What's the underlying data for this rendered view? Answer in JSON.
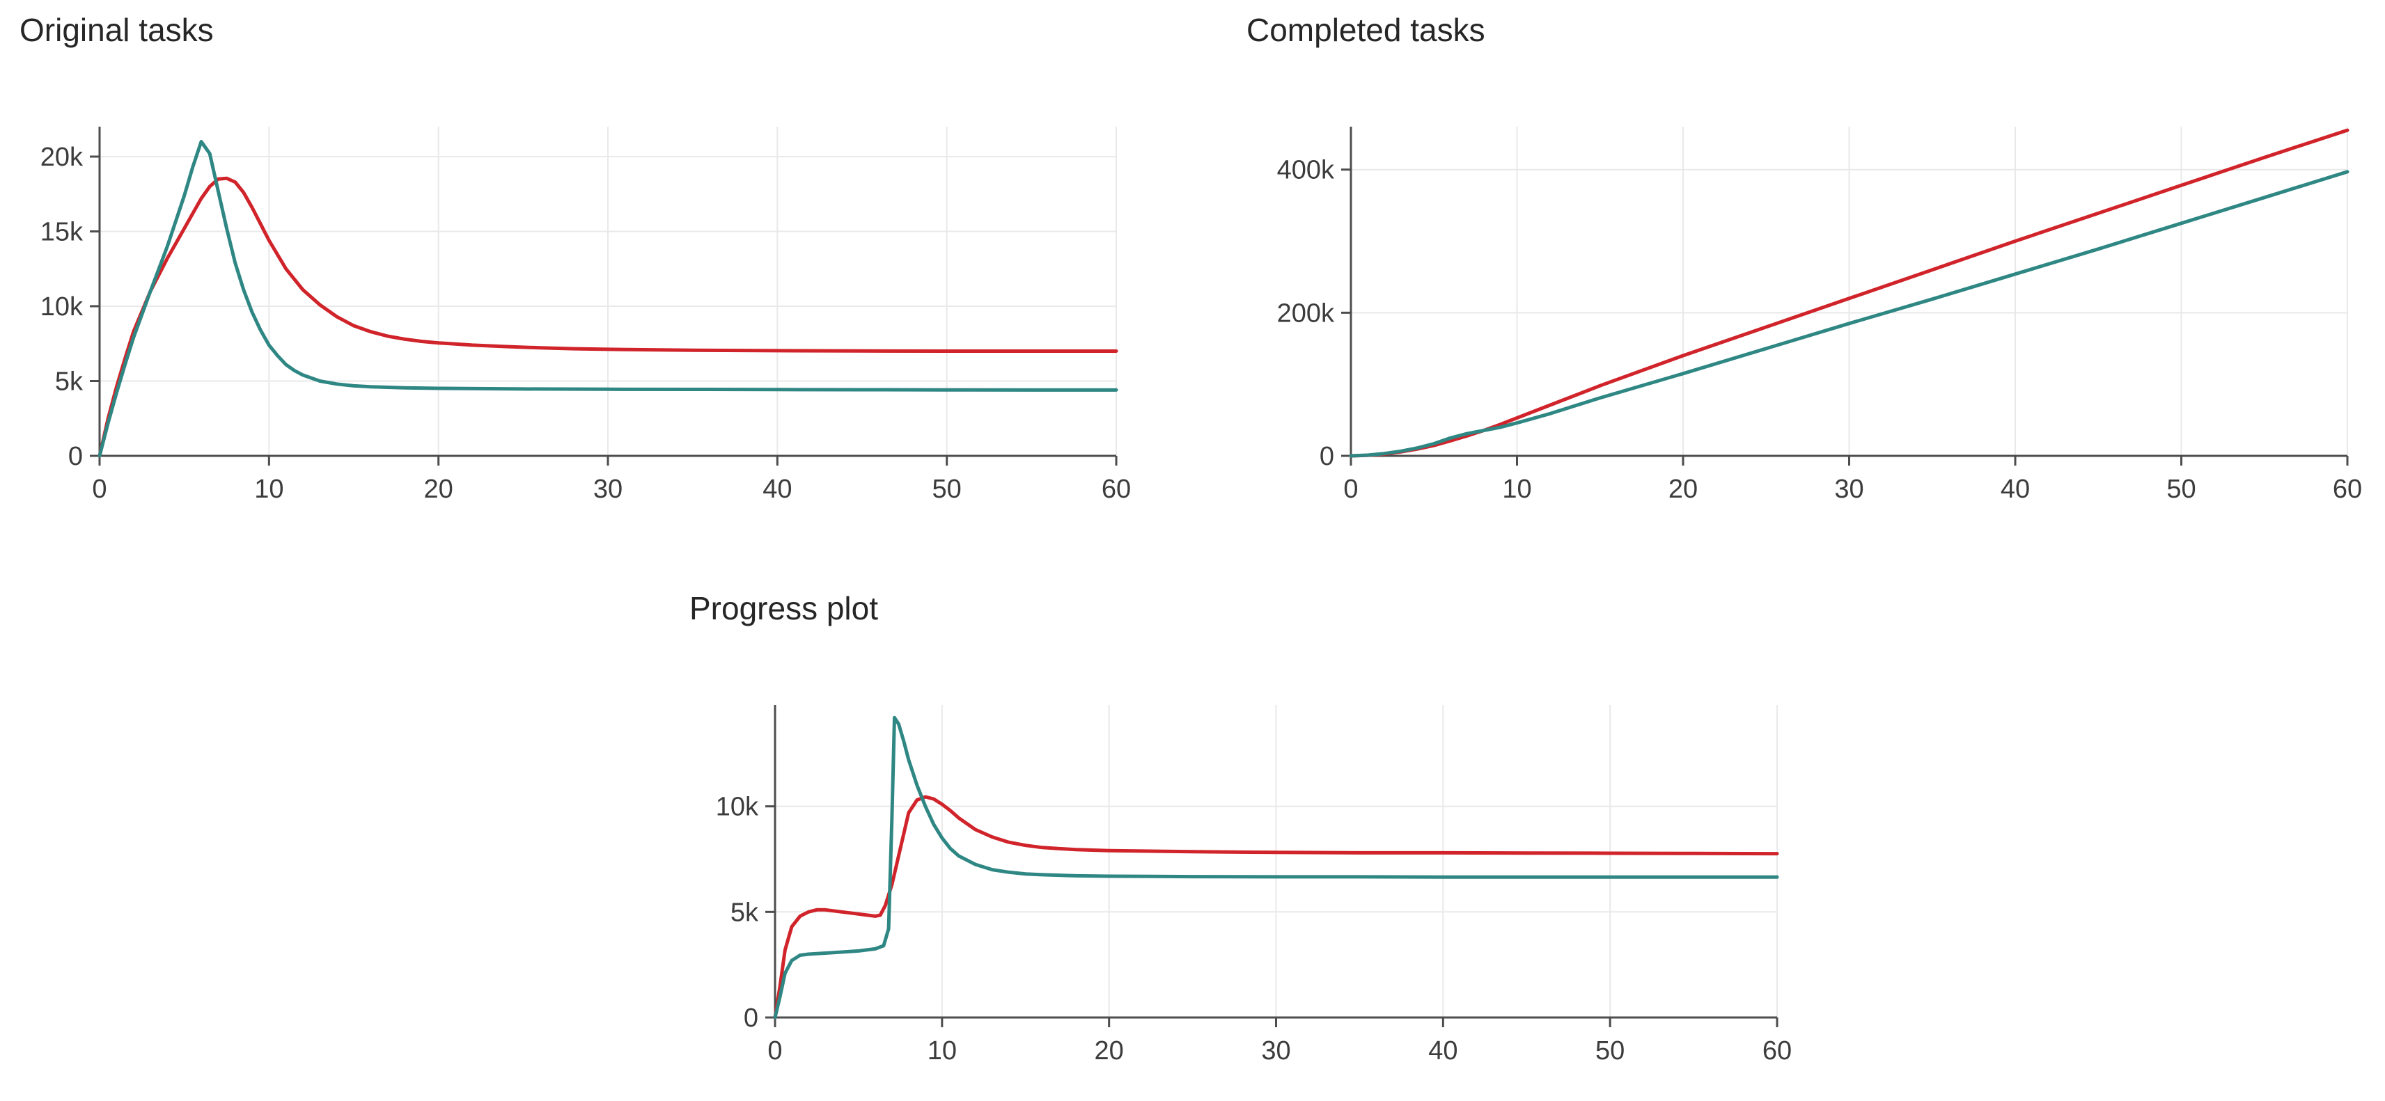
{
  "page": {
    "background": "#ffffff"
  },
  "palette": {
    "red": "#d0232a",
    "teal": "#2f8784",
    "grid": "#e9e9e9",
    "axis": "#4d4d4d",
    "tick_text": "#3c3c3c",
    "title_text": "#262626"
  },
  "chart_data": [
    {
      "type": "line",
      "title": "Original tasks",
      "xlabel": "",
      "ylabel": "",
      "xlim": [
        0,
        60
      ],
      "ylim": [
        0,
        22000
      ],
      "xticks": [
        0,
        10,
        20,
        30,
        40,
        50,
        60
      ],
      "xtick_labels": [
        "0",
        "10",
        "20",
        "30",
        "40",
        "50",
        "60"
      ],
      "yticks": [
        0,
        5000,
        10000,
        15000,
        20000
      ],
      "ytick_labels": [
        "0",
        "5k",
        "10k",
        "15k",
        "20k"
      ],
      "grid": true,
      "legend": "none",
      "series": [
        {
          "name": "red-series",
          "color": "red",
          "x": [
            0,
            0.5,
            1,
            1.5,
            2,
            3,
            4,
            5,
            5.5,
            6,
            6.5,
            7,
            7.5,
            8,
            8.5,
            9,
            9.5,
            10,
            11,
            12,
            13,
            14,
            15,
            16,
            17,
            18,
            19,
            20,
            22,
            24,
            26,
            28,
            30,
            35,
            40,
            45,
            50,
            55,
            60
          ],
          "y": [
            0,
            2500,
            4600,
            6500,
            8300,
            11000,
            13200,
            15200,
            16200,
            17200,
            18000,
            18500,
            18550,
            18300,
            17600,
            16600,
            15500,
            14400,
            12500,
            11100,
            10100,
            9300,
            8700,
            8300,
            8000,
            7800,
            7650,
            7550,
            7400,
            7300,
            7220,
            7160,
            7120,
            7060,
            7030,
            7010,
            7000,
            7000,
            7000
          ]
        },
        {
          "name": "teal-series",
          "color": "teal",
          "x": [
            0,
            0.5,
            1,
            1.5,
            2,
            3,
            4,
            5,
            5.5,
            6,
            6.5,
            7,
            7.5,
            8,
            8.5,
            9,
            9.5,
            10,
            10.5,
            11,
            11.5,
            12,
            13,
            14,
            15,
            16,
            18,
            20,
            25,
            30,
            35,
            40,
            45,
            50,
            55,
            60
          ],
          "y": [
            0,
            2200,
            4200,
            6100,
            7900,
            11000,
            14000,
            17400,
            19300,
            21000,
            20200,
            17700,
            15200,
            12900,
            11100,
            9600,
            8400,
            7400,
            6700,
            6100,
            5700,
            5400,
            5000,
            4800,
            4680,
            4620,
            4550,
            4510,
            4470,
            4450,
            4440,
            4430,
            4420,
            4410,
            4400,
            4400
          ]
        }
      ]
    },
    {
      "type": "line",
      "title": "Completed tasks",
      "xlabel": "",
      "ylabel": "",
      "xlim": [
        0,
        60
      ],
      "ylim": [
        0,
        460000
      ],
      "xticks": [
        0,
        10,
        20,
        30,
        40,
        50,
        60
      ],
      "xtick_labels": [
        "0",
        "10",
        "20",
        "30",
        "40",
        "50",
        "60"
      ],
      "yticks": [
        0,
        200000,
        400000
      ],
      "ytick_labels": [
        "0",
        "200k",
        "400k"
      ],
      "grid": true,
      "legend": "none",
      "series": [
        {
          "name": "red-series",
          "color": "red",
          "x": [
            0,
            1,
            2,
            3,
            4,
            5,
            6,
            7,
            8,
            9,
            10,
            12,
            15,
            20,
            25,
            30,
            35,
            40,
            45,
            50,
            55,
            60
          ],
          "y": [
            0,
            800,
            2500,
            5500,
            9500,
            14500,
            21000,
            28000,
            35500,
            44000,
            53000,
            71000,
            98000,
            140000,
            180000,
            220000,
            260000,
            300000,
            339000,
            378000,
            417000,
            455000
          ]
        },
        {
          "name": "teal-series",
          "color": "teal",
          "x": [
            0,
            1,
            2,
            3,
            4,
            5,
            6,
            7,
            8,
            9,
            10,
            12,
            15,
            20,
            25,
            30,
            35,
            40,
            45,
            50,
            55,
            60
          ],
          "y": [
            0,
            1000,
            3200,
            6500,
            11000,
            17000,
            25000,
            31000,
            35500,
            40000,
            46000,
            59000,
            81000,
            115000,
            150000,
            185000,
            219000,
            254000,
            289000,
            325000,
            361000,
            397000
          ]
        }
      ]
    },
    {
      "type": "line",
      "title": "Progress plot",
      "xlabel": "",
      "ylabel": "",
      "xlim": [
        0,
        60
      ],
      "ylim": [
        0,
        14800
      ],
      "xticks": [
        0,
        10,
        20,
        30,
        40,
        50,
        60
      ],
      "xtick_labels": [
        "0",
        "10",
        "20",
        "30",
        "40",
        "50",
        "60"
      ],
      "yticks": [
        0,
        5000,
        10000
      ],
      "ytick_labels": [
        "0",
        "5k",
        "10k"
      ],
      "grid": true,
      "legend": "none",
      "series": [
        {
          "name": "red-series",
          "color": "red",
          "x": [
            0,
            0.3,
            0.6,
            1,
            1.5,
            2,
            2.5,
            3,
            3.5,
            4,
            4.5,
            5,
            5.5,
            6,
            6.3,
            6.6,
            7,
            7.5,
            8,
            8.5,
            9,
            9.5,
            10,
            10.5,
            11,
            12,
            13,
            14,
            15,
            16,
            18,
            20,
            25,
            30,
            35,
            40,
            45,
            50,
            55,
            60
          ],
          "y": [
            0,
            1500,
            3200,
            4300,
            4800,
            5000,
            5100,
            5100,
            5050,
            5000,
            4950,
            4900,
            4850,
            4800,
            4850,
            5300,
            6300,
            8000,
            9700,
            10300,
            10450,
            10350,
            10100,
            9800,
            9450,
            8900,
            8550,
            8300,
            8150,
            8050,
            7950,
            7900,
            7850,
            7820,
            7800,
            7800,
            7790,
            7780,
            7770,
            7760
          ]
        },
        {
          "name": "teal-series",
          "color": "teal",
          "x": [
            0,
            0.3,
            0.6,
            1,
            1.5,
            2,
            3,
            4,
            5,
            6,
            6.5,
            6.8,
            7,
            7.15,
            7.4,
            7.7,
            8,
            8.5,
            9,
            9.5,
            10,
            10.5,
            11,
            12,
            13,
            14,
            15,
            16,
            18,
            20,
            25,
            30,
            35,
            40,
            45,
            50,
            55,
            60
          ],
          "y": [
            0,
            1000,
            2100,
            2700,
            2950,
            3000,
            3050,
            3100,
            3150,
            3250,
            3400,
            4200,
            9500,
            14200,
            13900,
            13100,
            12200,
            11000,
            10000,
            9150,
            8500,
            8000,
            7650,
            7250,
            7000,
            6880,
            6800,
            6760,
            6710,
            6690,
            6670,
            6660,
            6660,
            6650,
            6650,
            6650,
            6650,
            6650
          ]
        }
      ]
    }
  ]
}
